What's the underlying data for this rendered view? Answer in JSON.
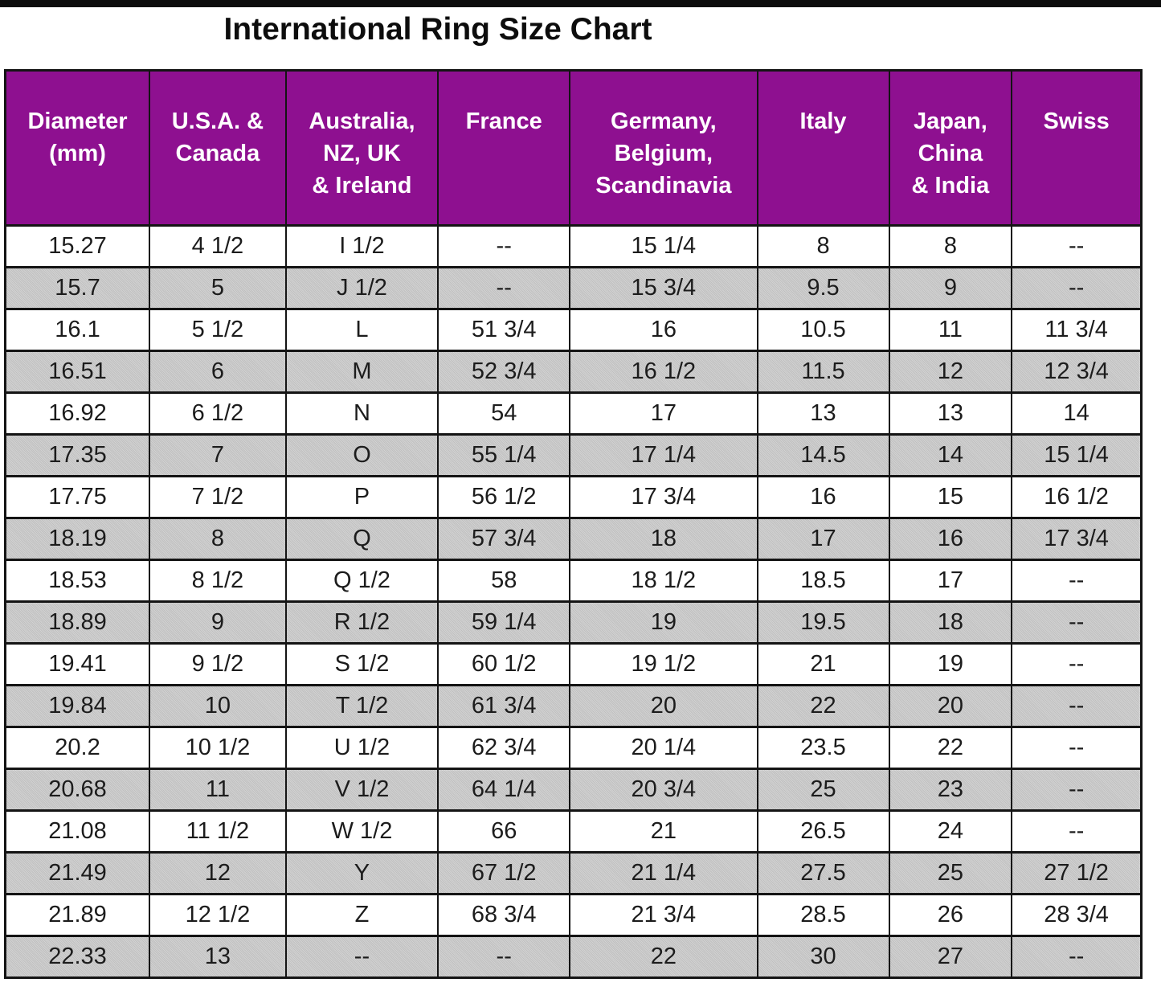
{
  "page": {
    "title": "International Ring Size Chart"
  },
  "colors": {
    "header_bg": "#8e1090",
    "header_text": "#ffffff",
    "row_white": "#ffffff",
    "row_grey": "#c8c8c8",
    "border": "#141414",
    "title_text": "#0d0d0d"
  },
  "table": {
    "headers": [
      "Diameter\n(mm)",
      "U.S.A. &\nCanada",
      "Australia,\nNZ, UK\n& Ireland",
      "France",
      "Germany,\nBelgium,\nScandinavia",
      "Italy",
      "Japan,\nChina\n& India",
      "Swiss"
    ],
    "rows": [
      [
        "15.27",
        "4 1/2",
        "I 1/2",
        "--",
        "15 1/4",
        "8",
        "8",
        "--"
      ],
      [
        "15.7",
        "5",
        "J 1/2",
        "--",
        "15 3/4",
        "9.5",
        "9",
        "--"
      ],
      [
        "16.1",
        "5 1/2",
        "L",
        "51 3/4",
        "16",
        "10.5",
        "11",
        "11 3/4"
      ],
      [
        "16.51",
        "6",
        "M",
        "52 3/4",
        "16 1/2",
        "11.5",
        "12",
        "12 3/4"
      ],
      [
        "16.92",
        "6 1/2",
        "N",
        "54",
        "17",
        "13",
        "13",
        "14"
      ],
      [
        "17.35",
        "7",
        "O",
        "55 1/4",
        "17 1/4",
        "14.5",
        "14",
        "15 1/4"
      ],
      [
        "17.75",
        "7 1/2",
        "P",
        "56 1/2",
        "17 3/4",
        "16",
        "15",
        "16 1/2"
      ],
      [
        "18.19",
        "8",
        "Q",
        "57 3/4",
        "18",
        "17",
        "16",
        "17 3/4"
      ],
      [
        "18.53",
        "8 1/2",
        "Q 1/2",
        "58",
        "18 1/2",
        "18.5",
        "17",
        "--"
      ],
      [
        "18.89",
        "9",
        "R 1/2",
        "59 1/4",
        "19",
        "19.5",
        "18",
        "--"
      ],
      [
        "19.41",
        "9 1/2",
        "S 1/2",
        "60 1/2",
        "19 1/2",
        "21",
        "19",
        "--"
      ],
      [
        "19.84",
        "10",
        "T 1/2",
        "61 3/4",
        "20",
        "22",
        "20",
        "--"
      ],
      [
        "20.2",
        "10 1/2",
        "U 1/2",
        "62 3/4",
        "20 1/4",
        "23.5",
        "22",
        "--"
      ],
      [
        "20.68",
        "11",
        "V 1/2",
        "64 1/4",
        "20 3/4",
        "25",
        "23",
        "--"
      ],
      [
        "21.08",
        "11 1/2",
        "W 1/2",
        "66",
        "21",
        "26.5",
        "24",
        "--"
      ],
      [
        "21.49",
        "12",
        "Y",
        "67 1/2",
        "21 1/4",
        "27.5",
        "25",
        "27 1/2"
      ],
      [
        "21.89",
        "12 1/2",
        "Z",
        "68 3/4",
        "21 3/4",
        "28.5",
        "26",
        "28 3/4"
      ],
      [
        "22.33",
        "13",
        "--",
        "--",
        "22",
        "30",
        "27",
        "--"
      ]
    ]
  },
  "chart_data": {
    "type": "table",
    "title": "International Ring Size Chart",
    "columns": [
      "Diameter (mm)",
      "U.S.A. & Canada",
      "Australia, NZ, UK & Ireland",
      "France",
      "Germany, Belgium, Scandinavia",
      "Italy",
      "Japan, China & India",
      "Swiss"
    ],
    "rows": [
      [
        "15.27",
        "4 1/2",
        "I 1/2",
        "--",
        "15 1/4",
        "8",
        "8",
        "--"
      ],
      [
        "15.7",
        "5",
        "J 1/2",
        "--",
        "15 3/4",
        "9.5",
        "9",
        "--"
      ],
      [
        "16.1",
        "5 1/2",
        "L",
        "51 3/4",
        "16",
        "10.5",
        "11",
        "11 3/4"
      ],
      [
        "16.51",
        "6",
        "M",
        "52 3/4",
        "16 1/2",
        "11.5",
        "12",
        "12 3/4"
      ],
      [
        "16.92",
        "6 1/2",
        "N",
        "54",
        "17",
        "13",
        "13",
        "14"
      ],
      [
        "17.35",
        "7",
        "O",
        "55 1/4",
        "17 1/4",
        "14.5",
        "14",
        "15 1/4"
      ],
      [
        "17.75",
        "7 1/2",
        "P",
        "56 1/2",
        "17 3/4",
        "16",
        "15",
        "16 1/2"
      ],
      [
        "18.19",
        "8",
        "Q",
        "57 3/4",
        "18",
        "17",
        "16",
        "17 3/4"
      ],
      [
        "18.53",
        "8 1/2",
        "Q 1/2",
        "58",
        "18 1/2",
        "18.5",
        "17",
        "--"
      ],
      [
        "18.89",
        "9",
        "R 1/2",
        "59 1/4",
        "19",
        "19.5",
        "18",
        "--"
      ],
      [
        "19.41",
        "9 1/2",
        "S 1/2",
        "60 1/2",
        "19 1/2",
        "21",
        "19",
        "--"
      ],
      [
        "19.84",
        "10",
        "T 1/2",
        "61 3/4",
        "20",
        "22",
        "20",
        "--"
      ],
      [
        "20.2",
        "10 1/2",
        "U 1/2",
        "62 3/4",
        "20 1/4",
        "23.5",
        "22",
        "--"
      ],
      [
        "20.68",
        "11",
        "V 1/2",
        "64 1/4",
        "20 3/4",
        "25",
        "23",
        "--"
      ],
      [
        "21.08",
        "11 1/2",
        "W 1/2",
        "66",
        "21",
        "26.5",
        "24",
        "--"
      ],
      [
        "21.49",
        "12",
        "Y",
        "67 1/2",
        "21 1/4",
        "27.5",
        "25",
        "27 1/2"
      ],
      [
        "21.89",
        "12 1/2",
        "Z",
        "68 3/4",
        "21 3/4",
        "28.5",
        "26",
        "28 3/4"
      ],
      [
        "22.33",
        "13",
        "--",
        "--",
        "22",
        "30",
        "27",
        "--"
      ]
    ],
    "layout_hints": {
      "zebra_striping": "odd rows white, even rows grey",
      "header_style": "purple background, white bold text",
      "grid": true
    }
  }
}
